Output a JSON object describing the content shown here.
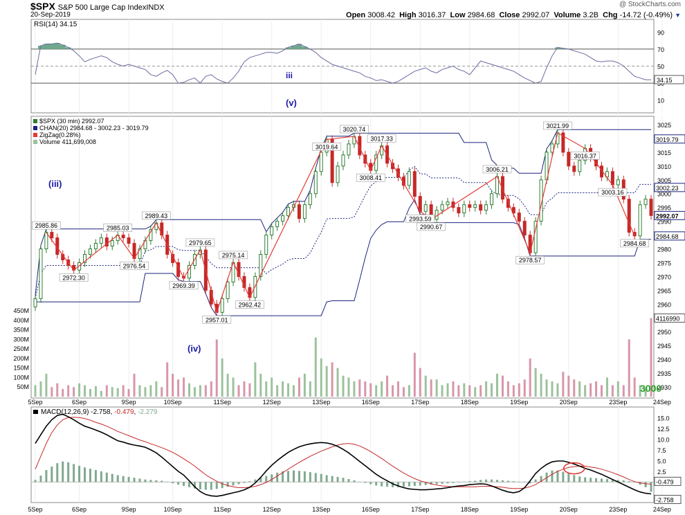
{
  "header": {
    "symbol": "$SPX",
    "name": "S&P 500 Large Cap Index",
    "exchange": "INDX",
    "date": "20-Sep-2019",
    "watermark": "@ StockCharts.com",
    "open_label": "Open",
    "open": "3008.42",
    "high_label": "High",
    "high": "3016.37",
    "low_label": "Low",
    "low": "2984.68",
    "close_label": "Close",
    "close": "2992.07",
    "volume_label": "Volume",
    "volume": "3.2B",
    "chg_label": "Chg",
    "chg": "-14.72 (-0.49%)",
    "dropdown_icon": "triangle-down-icon"
  },
  "colors": {
    "up": "#2e7d32",
    "down": "#c62828",
    "channel": "#1a237e",
    "zigzag": "#e53935",
    "vol_up": "#9cc29c",
    "vol_down": "#d896a8",
    "rsi_fill": "#6fa88c",
    "macd": "#000000",
    "signal": "#c62828",
    "hist": "#7fa98f",
    "wave": "#1a1aa8",
    "big_label": "#2aa02a"
  },
  "chart_data": [
    {
      "type": "line",
      "panel": "rsi",
      "legend": "RSI(14) 34.15",
      "y_ticks": [
        "90",
        "70",
        "50",
        "30",
        "10"
      ],
      "ylim": [
        0,
        100
      ],
      "overbought": 70,
      "oversold": 30,
      "current_value": "34.15",
      "values": [
        40,
        74,
        76,
        76,
        77,
        75,
        72,
        68,
        62,
        55,
        58,
        60,
        62,
        60,
        55,
        52,
        50,
        52,
        50,
        48,
        46,
        40,
        38,
        42,
        45,
        40,
        30,
        31,
        34,
        36,
        30,
        38,
        40,
        35,
        32,
        30,
        36,
        44,
        55,
        60,
        62,
        64,
        66,
        66,
        65,
        68,
        72,
        74,
        76,
        73,
        70,
        66,
        60,
        56,
        52,
        50,
        48,
        46,
        44,
        42,
        38,
        36,
        33,
        34,
        32,
        30,
        32,
        36,
        40,
        44,
        46,
        48,
        44,
        42,
        46,
        48,
        50,
        46,
        44,
        40,
        48,
        56,
        54,
        52,
        50,
        48,
        46,
        44,
        40,
        36,
        33,
        30,
        32,
        48,
        62,
        72,
        71,
        70,
        68,
        66,
        64,
        60,
        56,
        55,
        56,
        56,
        54,
        50,
        44,
        38,
        36,
        34,
        34
      ],
      "annotations": [
        {
          "text": "iii",
          "x": 113,
          "y": 37
        }
      ]
    },
    {
      "type": "candlestick",
      "panel": "price",
      "legend": [
        "$SPX (30 min) 2992.07",
        "CHAN(20) 2984.68 - 3002.23 - 3019.79",
        "ZigZag(0.28%)",
        "Volume 411,699,008"
      ],
      "y_ticks": [
        "3025",
        "3020",
        "3015",
        "3010",
        "3005",
        "3000",
        "2995",
        "2990",
        "2985",
        "2980",
        "2975",
        "2970",
        "2965",
        "2960",
        "2955",
        "2950",
        "2945",
        "2940",
        "2935",
        "2930"
      ],
      "ylim": [
        2927.5,
        3026.5
      ],
      "right_labels": [
        "3019.79",
        "3002.23",
        "2992.07",
        "2984.68",
        "4116990"
      ],
      "volume_ticks": [
        "450M",
        "400M",
        "350M",
        "300M",
        "250M",
        "200M",
        "150M",
        "100M",
        "50M"
      ],
      "x_labels": [
        "5Sep",
        "6Sep",
        "9Sep",
        "10Sep",
        "11Sep",
        "12Sep",
        "13Sep",
        "16Sep",
        "17Sep",
        "18Sep",
        "19Sep",
        "20Sep",
        "23Sep",
        "24Sep"
      ],
      "close": [
        2962.0,
        2980.0,
        2986.0,
        2984.0,
        2978.0,
        2976.0,
        2974.0,
        2972.3,
        2975.0,
        2978.0,
        2980.0,
        2982.0,
        2984.0,
        2981.0,
        2983.0,
        2985.0,
        2984.0,
        2982.0,
        2976.5,
        2980.0,
        2983.0,
        2987.0,
        2989.4,
        2985.0,
        2978.0,
        2975.0,
        2970.0,
        2969.4,
        2974.0,
        2978.0,
        2979.6,
        2965.0,
        2960.0,
        2957.0,
        2962.0,
        2968.0,
        2975.1,
        2970.0,
        2966.0,
        2962.4,
        2970.0,
        2978.0,
        2985.0,
        2988.0,
        2990.0,
        2992.0,
        2995.0,
        2996.0,
        2991.0,
        2996.0,
        3000.0,
        3008.0,
        3015.0,
        3019.6,
        3004.0,
        3010.0,
        3014.0,
        3018.0,
        3020.7,
        3014.0,
        3011.0,
        3008.4,
        3014.0,
        3017.3,
        3011.0,
        3009.0,
        3006.0,
        3003.0,
        3008.0,
        2999.0,
        2993.6,
        2996.0,
        2990.7,
        2994.0,
        2996.0,
        2997.0,
        2995.0,
        2993.0,
        2996.0,
        2995.0,
        2996.0,
        2994.0,
        2996.0,
        3000.0,
        3006.2,
        2998.0,
        2995.0,
        2993.0,
        2990.0,
        2985.0,
        2978.6,
        2990.0,
        3005.0,
        3015.0,
        3018.0,
        3022.0,
        3015.0,
        3010.0,
        3008.0,
        3012.0,
        3016.4,
        3013.0,
        3010.0,
        3006.0,
        3008.0,
        3003.2,
        3005.0,
        2998.0,
        2986.0,
        2984.7,
        2996.0,
        2998.0,
        2992.07
      ],
      "volume_M": [
        60,
        80,
        120,
        50,
        70,
        40,
        60,
        50,
        70,
        60,
        40,
        55,
        30,
        60,
        50,
        45,
        60,
        40,
        120,
        60,
        50,
        60,
        80,
        50,
        180,
        120,
        90,
        100,
        70,
        50,
        60,
        60,
        80,
        300,
        200,
        120,
        100,
        60,
        80,
        70,
        180,
        120,
        80,
        100,
        60,
        80,
        70,
        60,
        100,
        120,
        80,
        310,
        200,
        160,
        180,
        150,
        110,
        100,
        80,
        90,
        80,
        70,
        60,
        80,
        110,
        60,
        80,
        50,
        60,
        230,
        150,
        110,
        90,
        90,
        60,
        70,
        80,
        60,
        70,
        60,
        50,
        60,
        80,
        70,
        120,
        110,
        80,
        60,
        70,
        90,
        200,
        150,
        120,
        90,
        80,
        70,
        130,
        110,
        90,
        80,
        60,
        70,
        80,
        60,
        100,
        60,
        80,
        60,
        300,
        100,
        60,
        50,
        412
      ],
      "zigzag": [
        [
          "2985.86",
          2985.86,
          2
        ],
        [
          "2972.30",
          2972.3,
          7
        ],
        [
          "2985.03",
          2985.03,
          15
        ],
        [
          "2976.54",
          2976.54,
          18
        ],
        [
          "2989.43",
          2989.43,
          22
        ],
        [
          "2969.39",
          2969.39,
          27
        ],
        [
          "2979.65",
          2979.65,
          30
        ],
        [
          "2957.01",
          2957.01,
          33
        ],
        [
          "2975.14",
          2975.14,
          36
        ],
        [
          "2962.42",
          2962.42,
          39
        ],
        [
          "3019.64",
          3019.64,
          53
        ],
        [
          "3008.41",
          3008.41,
          61
        ],
        [
          "3020.74",
          3020.74,
          58
        ],
        [
          "3017.33",
          3017.33,
          63
        ],
        [
          "2993.59",
          2993.59,
          70
        ],
        [
          "2990.67",
          2990.67,
          72
        ],
        [
          "3006.21",
          3006.21,
          84
        ],
        [
          "2978.57",
          2978.57,
          90
        ],
        [
          "3021.99",
          3021.99,
          95
        ],
        [
          "3016.37",
          3016.37,
          100
        ],
        [
          "3003.16",
          3003.16,
          105
        ],
        [
          "2984.68",
          2984.68,
          109
        ]
      ],
      "wave_labels": [
        {
          "text": "(v)",
          "x": 413,
          "y": 153
        },
        {
          "text": "(iii)",
          "x": 70,
          "y": 270
        },
        {
          "text": "(iv)",
          "x": 271,
          "y": 508
        }
      ],
      "big_label": "3000"
    },
    {
      "type": "line",
      "panel": "macd",
      "legend_prefix": "MACD(12,26,9)",
      "legend_macd": "-2.758",
      "legend_signal": "-0.479",
      "legend_hist": "-2.279",
      "y_ticks": [
        "15.0",
        "12.5",
        "10.0",
        "7.5",
        "5.0",
        "2.5"
      ],
      "ylim": [
        -3.8,
        16.5
      ],
      "right_labels": [
        "-0.479",
        "-2.758"
      ],
      "macd": [
        9,
        11,
        13,
        14.5,
        15.5,
        15.8,
        15.2,
        14.5,
        13.7,
        13,
        12.6,
        12.1,
        11.6,
        11,
        10.3,
        9.6,
        9.3,
        8.9,
        8.6,
        8.4,
        8.1,
        7.5,
        6.8,
        5.8,
        4.7,
        3.6,
        2.5,
        1.6,
        0.3,
        -1.1,
        -2.2,
        -2.9,
        -3.2,
        -3.3,
        -3.1,
        -2.8,
        -2.5,
        -2.2,
        -1.8,
        -1.2,
        -0.2,
        1.1,
        2.6,
        3.9,
        5,
        6,
        6.9,
        7.6,
        8.2,
        8.6,
        8.9,
        9.1,
        9.2,
        9.1,
        8.8,
        8.3,
        7.6,
        6.8,
        5.8,
        4.8,
        3.8,
        2.8,
        1.8,
        1,
        0.3,
        -0.4,
        -0.9,
        -1.3,
        -1.6,
        -1.7,
        -1.8,
        -1.8,
        -1.7,
        -1.6,
        -1.5,
        -1.3,
        -1.1,
        -0.9,
        -0.8,
        -0.6,
        -0.5,
        -0.4,
        -0.5,
        -0.9,
        -1.4,
        -1.9,
        -2.3,
        -2.5,
        -2.2,
        -1.3,
        0.3,
        2,
        3.2,
        4.1,
        4.7,
        4.9,
        4.9,
        4.6,
        4.2,
        3.7,
        3.2,
        2.8,
        2.3,
        1.8,
        1.2,
        0.6,
        0,
        -0.6,
        -1.2,
        -1.8,
        -2.3,
        -2.6,
        -2.758
      ],
      "signal": [
        3,
        6,
        9,
        11.5,
        13.3,
        14.5,
        15,
        15.1,
        15,
        14.8,
        14.4,
        13.9,
        13.5,
        13,
        12.4,
        11.8,
        11.3,
        10.8,
        10.3,
        9.8,
        9.4,
        8.9,
        8.5,
        8,
        7.5,
        6.9,
        6.2,
        5.4,
        4.6,
        3.7,
        2.7,
        1.7,
        0.9,
        0.2,
        -0.4,
        -0.8,
        -1.1,
        -1.3,
        -1.3,
        -1.2,
        -1,
        -0.6,
        -0.1,
        0.6,
        1.4,
        2.2,
        3,
        3.8,
        4.6,
        5.3,
        6,
        6.6,
        7.2,
        7.7,
        8.2,
        8.6,
        8.9,
        9,
        8.8,
        8.4,
        7.8,
        7.1,
        6.3,
        5.5,
        4.6,
        3.7,
        2.9,
        2.1,
        1.4,
        0.8,
        0.3,
        -0.1,
        -0.4,
        -0.7,
        -0.9,
        -1,
        -1.1,
        -1.1,
        -1.1,
        -1.1,
        -1.1,
        -1,
        -1,
        -1,
        -1.1,
        -1.2,
        -1.4,
        -1.5,
        -1.5,
        -1.4,
        -1.1,
        -0.6,
        0.2,
        1,
        1.8,
        2.5,
        3,
        3.4,
        3.6,
        3.7,
        3.7,
        3.5,
        3.3,
        3,
        2.6,
        2.2,
        1.7,
        1.2,
        0.6,
        0.1,
        -0.2,
        -0.4,
        -0.479
      ],
      "histogram": [
        0.5,
        1.5,
        2.8,
        3.6,
        4.4,
        4.8,
        4.6,
        4.2,
        3.8,
        3.4,
        3.1,
        2.8,
        2.5,
        2.2,
        1.9,
        1.6,
        1.4,
        1.2,
        1,
        0.8,
        0.6,
        0.5,
        0.4,
        0.3,
        0.1,
        -0.3,
        -0.6,
        -0.9,
        -1.2,
        -1.5,
        -1.7,
        -1.8,
        -1.8,
        -1.6,
        -1.4,
        -1.1,
        -0.8,
        -0.5,
        -0.2,
        0.2,
        0.6,
        1,
        1.4,
        1.8,
        2.2,
        2.5,
        2.6,
        2.7,
        2.6,
        2.5,
        2.3,
        2.1,
        1.9,
        1.6,
        1.4,
        1.2,
        1,
        0.7,
        0.4,
        0.1,
        -0.2,
        -0.5,
        -0.8,
        -1,
        -1.1,
        -1.2,
        -1.2,
        -1.1,
        -1,
        -0.9,
        -0.8,
        -0.7,
        -0.6,
        -0.5,
        -0.4,
        -0.3,
        -0.2,
        -0.1,
        0.1,
        0.2,
        0.3,
        0.5,
        0.6,
        0.6,
        0.5,
        0.4,
        0.3,
        0.2,
        0.1,
        -0.1,
        -0.3,
        0.6,
        1.4,
        2.2,
        2.7,
        2.7,
        2.4,
        2,
        1.6,
        1.3,
        1.1,
        1,
        0.9,
        0.8,
        0.7,
        0.6,
        0.5,
        0.4,
        0.2,
        0,
        -0.6,
        -1.2,
        -2.279
      ]
    }
  ]
}
